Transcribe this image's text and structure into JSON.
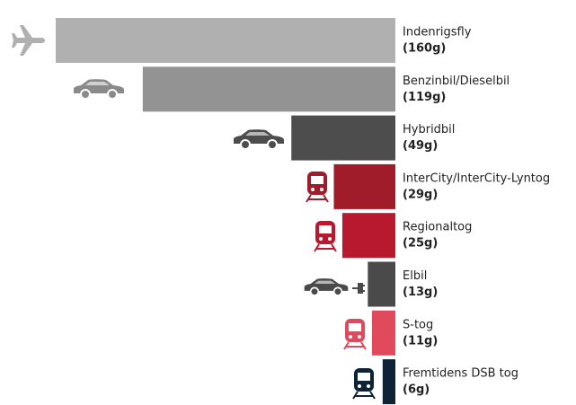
{
  "chart_data": {
    "type": "bar",
    "orientation": "horizontal",
    "categories": [
      "Indenrigsfly",
      "Benzinbil/Dieselbil",
      "Hybridbil",
      "InterCity/InterCity-Lyntog",
      "Regionaltog",
      "Elbil",
      "S-tog",
      "Fremtidens DSB tog"
    ],
    "values": [
      160,
      119,
      49,
      29,
      25,
      13,
      11,
      6
    ],
    "value_labels": [
      "(160g)",
      "(119g)",
      "(49g)",
      "(29g)",
      "(25g)",
      "(13g)",
      "(11g)",
      "(6g)"
    ],
    "colors": [
      "#b0b0b0",
      "#939393",
      "#4d4d4d",
      "#a01c2a",
      "#b8192e",
      "#4a4a4a",
      "#e04a5c",
      "#0e2238"
    ]
  }
}
